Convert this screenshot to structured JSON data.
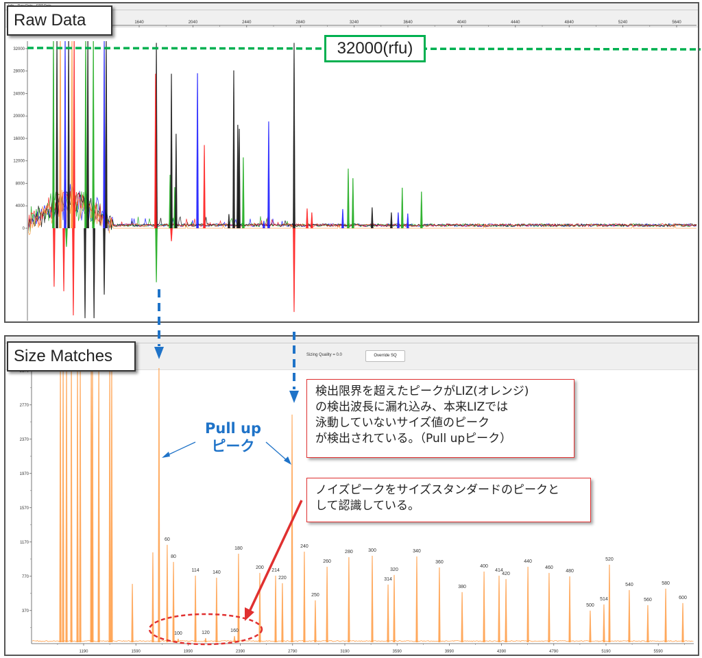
{
  "window": {
    "top_tabs": [
      "Info",
      "Raw Data",
      "EPT Data"
    ]
  },
  "panels": {
    "raw_label": "Raw Data",
    "size_label": "Size Matches"
  },
  "toolbar": {
    "sizing_quality": "Sizing Quality = 0.0",
    "override_button": "Override SQ"
  },
  "threshold": {
    "label": "32000(rfu)",
    "value": 32000,
    "color": "#00b050"
  },
  "annotations": {
    "pullup_line1": "Pull up",
    "pullup_line2": "ピーク",
    "note1_lines": [
      "検出限界を超えたピークがLIZ(オレンジ)",
      "の検出波長に漏れ込み、本来LIZでは",
      "泳動していないサイズ値のピーク",
      "が検出されている。（Pull upピーク）"
    ],
    "note2_lines": [
      "ノイズピークをサイズスタンダードのピークと",
      "して認識している。"
    ],
    "note_border_color": "#e03030",
    "pullup_color": "#1f73c8"
  },
  "chart_data": [
    {
      "type": "line",
      "title": "Raw Data",
      "xlim": [
        810,
        5780
      ],
      "ylim": [
        -16500,
        33000
      ],
      "x_ticks": [
        1640,
        2040,
        2440,
        2840,
        3240,
        3640,
        4040,
        4440,
        4840,
        5240,
        5640
      ],
      "y_ticks": [
        0,
        4000,
        8000,
        12000,
        16000,
        20000,
        24000,
        28000,
        32000
      ],
      "dye_colors": {
        "blue": "#1a1aff",
        "green": "#1aaa1a",
        "black": "#111111",
        "red": "#ff1a1a",
        "orange": "#ff9a40"
      },
      "peaks": [
        {
          "dye": "green",
          "scan": 1002,
          "rfu": 34000
        },
        {
          "dye": "black",
          "scan": 1028,
          "rfu": 34000
        },
        {
          "dye": "orange",
          "scan": 1053,
          "rfu": 34000
        },
        {
          "dye": "blue",
          "scan": 1089,
          "rfu": 34000
        },
        {
          "dye": "black",
          "scan": 1115,
          "rfu": 34000
        },
        {
          "dye": "orange",
          "scan": 1140,
          "rfu": 34000
        },
        {
          "dye": "red",
          "scan": 1156,
          "rfu": 34000
        },
        {
          "dye": "green",
          "scan": 1242,
          "rfu": 34000
        },
        {
          "dye": "black",
          "scan": 1258,
          "rfu": 34000
        },
        {
          "dye": "green",
          "scan": 1299,
          "rfu": 34000
        },
        {
          "dye": "blue",
          "scan": 1380,
          "rfu": 34000
        },
        {
          "dye": "black",
          "scan": 1395,
          "rfu": 34000
        },
        {
          "dye": "red",
          "scan": 1007,
          "rfu": -10400
        },
        {
          "dye": "red",
          "scan": 1079,
          "rfu": -11200
        },
        {
          "dye": "green",
          "scan": 1099,
          "rfu": -3300
        },
        {
          "dye": "red",
          "scan": 1150,
          "rfu": -15500
        },
        {
          "dye": "black",
          "scan": 1237,
          "rfu": -16000
        },
        {
          "dye": "black",
          "scan": 1304,
          "rfu": -16000
        },
        {
          "dye": "black",
          "scan": 1380,
          "rfu": -11800
        },
        {
          "dye": "black",
          "scan": 1768,
          "rfu": 33000
        },
        {
          "dye": "red",
          "scan": 1762,
          "rfu": 27500
        },
        {
          "dye": "green",
          "scan": 1768,
          "rfu": -9600
        },
        {
          "dye": "green",
          "scan": 1870,
          "rfu": 9500
        },
        {
          "dye": "black",
          "scan": 1880,
          "rfu": 27500
        },
        {
          "dye": "red",
          "scan": 1880,
          "rfu": -2300
        },
        {
          "dye": "green",
          "scan": 1905,
          "rfu": 7300
        },
        {
          "dye": "black",
          "scan": 1915,
          "rfu": 16800
        },
        {
          "dye": "blue",
          "scan": 2074,
          "rfu": 27600
        },
        {
          "dye": "red",
          "scan": 2125,
          "rfu": 14800
        },
        {
          "dye": "black",
          "scan": 2308,
          "rfu": 2500
        },
        {
          "dye": "black",
          "scan": 2344,
          "rfu": 28100
        },
        {
          "dye": "black",
          "scan": 2374,
          "rfu": 18400
        },
        {
          "dye": "black",
          "scan": 2385,
          "rfu": 17700
        },
        {
          "dye": "green",
          "scan": 2415,
          "rfu": 12600
        },
        {
          "dye": "blue",
          "scan": 2568,
          "rfu": 1300
        },
        {
          "dye": "blue",
          "scan": 2604,
          "rfu": 19000
        },
        {
          "dye": "black",
          "scan": 2793,
          "rfu": 33000
        },
        {
          "dye": "red",
          "scan": 2793,
          "rfu": -14900
        },
        {
          "dye": "red",
          "scan": 2890,
          "rfu": 3500
        },
        {
          "dye": "red",
          "scan": 2925,
          "rfu": 2800
        },
        {
          "dye": "blue",
          "scan": 3155,
          "rfu": 3400
        },
        {
          "dye": "green",
          "scan": 3196,
          "rfu": 10600
        },
        {
          "dye": "green",
          "scan": 3231,
          "rfu": 8900
        },
        {
          "dye": "black",
          "scan": 3374,
          "rfu": 3700
        },
        {
          "dye": "black",
          "scan": 3517,
          "rfu": 2800
        },
        {
          "dye": "blue",
          "scan": 3568,
          "rfu": 2800
        },
        {
          "dye": "green",
          "scan": 3598,
          "rfu": 7200
        },
        {
          "dye": "blue",
          "scan": 3639,
          "rfu": 2600
        },
        {
          "dye": "green",
          "scan": 3741,
          "rfu": 6500
        }
      ]
    },
    {
      "type": "line",
      "title": "Size Matches",
      "xlim": [
        790,
        5860
      ],
      "ylim": [
        0,
        3200
      ],
      "x_ticks": [
        1190,
        1590,
        1990,
        2390,
        2790,
        3190,
        3590,
        3990,
        4390,
        4790,
        5190,
        5590
      ],
      "y_ticks": [
        370,
        770,
        1170,
        1570,
        1970,
        2370,
        2770,
        3170
      ],
      "color": "#ff9a40",
      "unlabeled_peaks": [
        {
          "scan": 1012,
          "rfu": 3300
        },
        {
          "scan": 1033,
          "rfu": 3300
        },
        {
          "scan": 1059,
          "rfu": 3300
        },
        {
          "scan": 1096,
          "rfu": 3300
        },
        {
          "scan": 1143,
          "rfu": 3300
        },
        {
          "scan": 1164,
          "rfu": 3300
        },
        {
          "scan": 1248,
          "rfu": 3300
        },
        {
          "scan": 1258,
          "rfu": 3300
        },
        {
          "scan": 1306,
          "rfu": 3300
        },
        {
          "scan": 1390,
          "rfu": 3300
        },
        {
          "scan": 1405,
          "rfu": 3300
        },
        {
          "scan": 1563,
          "rfu": 680
        },
        {
          "scan": 1720,
          "rfu": 1048
        },
        {
          "scan": 1767,
          "rfu": 3300
        },
        {
          "scan": 2786,
          "rfu": 2656
        }
      ],
      "sized_peaks": [
        {
          "size": "60",
          "scan": 1830,
          "rfu": 1136
        },
        {
          "size": "80",
          "scan": 1878,
          "rfu": 936
        },
        {
          "size": "100",
          "scan": 1914,
          "rfu": 40
        },
        {
          "size": "114",
          "scan": 2046,
          "rfu": 776
        },
        {
          "size": "120",
          "scan": 2124,
          "rfu": 48
        },
        {
          "size": "140",
          "scan": 2208,
          "rfu": 752
        },
        {
          "size": "160",
          "scan": 2345,
          "rfu": 72
        },
        {
          "size": "180",
          "scan": 2376,
          "rfu": 1032
        },
        {
          "size": "200",
          "scan": 2539,
          "rfu": 808
        },
        {
          "size": "214",
          "scan": 2660,
          "rfu": 776
        },
        {
          "size": "220",
          "scan": 2712,
          "rfu": 688
        },
        {
          "size": "240",
          "scan": 2880,
          "rfu": 1056
        },
        {
          "size": "250",
          "scan": 2964,
          "rfu": 488
        },
        {
          "size": "260",
          "scan": 3054,
          "rfu": 880
        },
        {
          "size": "280",
          "scan": 3221,
          "rfu": 992
        },
        {
          "size": "300",
          "scan": 3400,
          "rfu": 1008
        },
        {
          "size": "314",
          "scan": 3521,
          "rfu": 672
        },
        {
          "size": "320",
          "scan": 3568,
          "rfu": 784
        },
        {
          "size": "340",
          "scan": 3741,
          "rfu": 1000
        },
        {
          "size": "360",
          "scan": 3914,
          "rfu": 872
        },
        {
          "size": "380",
          "scan": 4088,
          "rfu": 584
        },
        {
          "size": "400",
          "scan": 4256,
          "rfu": 824
        },
        {
          "size": "414",
          "scan": 4371,
          "rfu": 776
        },
        {
          "size": "420",
          "scan": 4424,
          "rfu": 736
        },
        {
          "size": "440",
          "scan": 4592,
          "rfu": 880
        },
        {
          "size": "460",
          "scan": 4754,
          "rfu": 808
        },
        {
          "size": "480",
          "scan": 4912,
          "rfu": 768
        },
        {
          "size": "500",
          "scan": 5069,
          "rfu": 368
        },
        {
          "size": "514",
          "scan": 5174,
          "rfu": 440
        },
        {
          "size": "520",
          "scan": 5216,
          "rfu": 904
        },
        {
          "size": "540",
          "scan": 5368,
          "rfu": 608
        },
        {
          "size": "560",
          "scan": 5510,
          "rfu": 432
        },
        {
          "size": "580",
          "scan": 5647,
          "rfu": 624
        },
        {
          "size": "600",
          "scan": 5778,
          "rfu": 456
        }
      ]
    }
  ]
}
